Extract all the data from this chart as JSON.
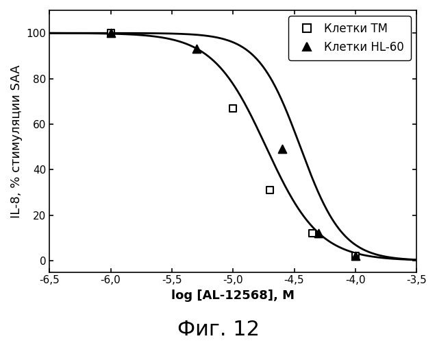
{
  "title": "Фиг. 12",
  "xlabel": "log [AL-12568], М",
  "ylabel": "IL-8, % стимуляции SAA",
  "xlim": [
    -6.5,
    -3.5
  ],
  "ylim": [
    -5,
    110
  ],
  "xticks": [
    -6.5,
    -6.0,
    -5.5,
    -5.0,
    -4.5,
    -4.0,
    -3.5
  ],
  "xtick_labels": [
    "-6,5",
    "-6,0",
    "-5,5",
    "-5,0",
    "-4,5",
    "-4,0",
    "-3,5"
  ],
  "yticks": [
    0,
    20,
    40,
    60,
    80,
    100
  ],
  "series_TM": {
    "label": "Клетки ТМ",
    "x_data": [
      -6.0,
      -5.0,
      -4.7,
      -4.35,
      -4.0
    ],
    "y_data": [
      100,
      67,
      31,
      12,
      2
    ],
    "ec50": -4.73,
    "hill": 2.0
  },
  "series_HL60": {
    "label": "Клетки HL-60",
    "x_data": [
      -6.0,
      -5.3,
      -4.6,
      -4.3,
      -4.0
    ],
    "y_data": [
      100,
      93,
      49,
      12,
      2
    ],
    "ec50": -4.45,
    "hill": 2.5
  },
  "line_color": "#000000",
  "background_color": "#ffffff",
  "font_size_title": 22,
  "font_size_labels": 13,
  "font_size_ticks": 11,
  "font_size_legend": 12
}
